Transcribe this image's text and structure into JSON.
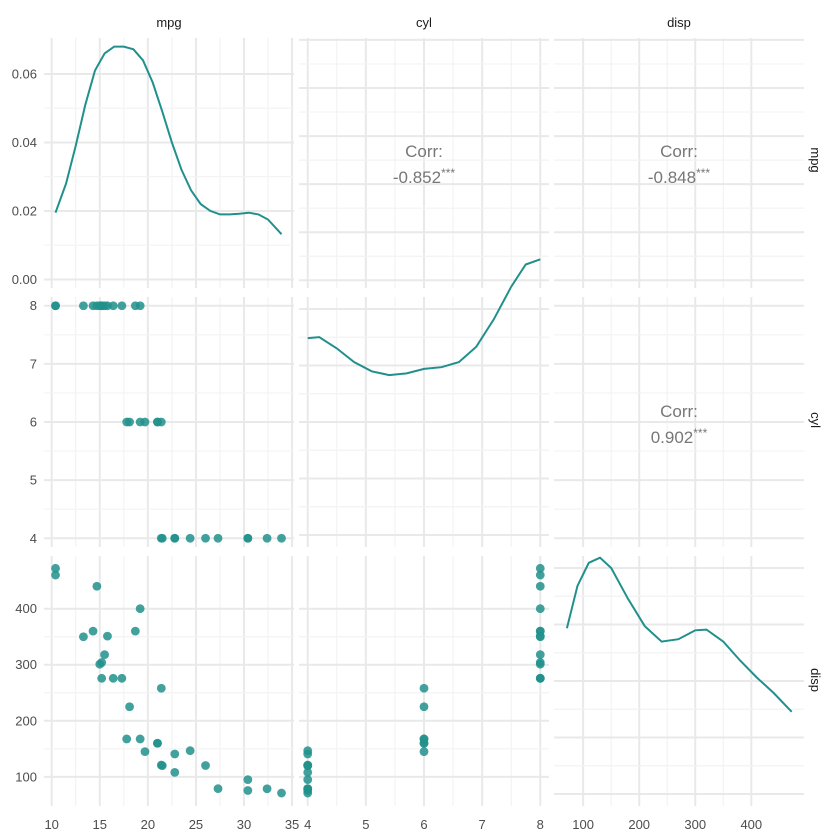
{
  "colors": {
    "series": "#21908c",
    "text": "#4d4d4d",
    "corr_text": "#777777",
    "grid": "#ebebeb"
  },
  "chart_data": {
    "type": "scatter",
    "variables": [
      "mpg",
      "cyl",
      "disp"
    ],
    "column_strips": [
      "mpg",
      "cyl",
      "disp"
    ],
    "row_strips": [
      "mpg",
      "cyl",
      "disp"
    ],
    "axes": {
      "mpg": {
        "range": [
          9.2,
          35.2
        ],
        "ticks": [
          "10",
          "15",
          "20",
          "25",
          "30",
          "35"
        ],
        "tick_values": [
          10,
          15,
          20,
          25,
          30,
          35
        ]
      },
      "cyl": {
        "range": [
          3.85,
          8.15
        ],
        "ticks": [
          "4",
          "5",
          "6",
          "7",
          "8"
        ],
        "tick_values": [
          4,
          5,
          6,
          7,
          8
        ]
      },
      "disp": {
        "range": [
          48,
          494
        ],
        "ticks": [
          "100",
          "200",
          "300",
          "400"
        ],
        "tick_values": [
          100,
          200,
          300,
          400
        ]
      },
      "density_y": {
        "range": [
          -0.0025,
          0.0705
        ],
        "ticks": [
          "0.00",
          "0.02",
          "0.04",
          "0.06"
        ],
        "tick_values": [
          0,
          0.02,
          0.04,
          0.06
        ]
      }
    },
    "correlations": [
      {
        "row": "mpg",
        "col": "cyl",
        "label": "Corr:",
        "value": "-0.852",
        "stars": "***"
      },
      {
        "row": "mpg",
        "col": "disp",
        "label": "Corr:",
        "value": "-0.848",
        "stars": "***"
      },
      {
        "row": "cyl",
        "col": "disp",
        "label": "Corr:",
        "value": "0.902",
        "stars": "***"
      }
    ],
    "density_mpg": [
      [
        10.4,
        0.0195
      ],
      [
        11.5,
        0.028
      ],
      [
        12.5,
        0.039
      ],
      [
        13.5,
        0.051
      ],
      [
        14.5,
        0.061
      ],
      [
        15.5,
        0.066
      ],
      [
        16.5,
        0.068
      ],
      [
        17.5,
        0.068
      ],
      [
        18.5,
        0.0672
      ],
      [
        19.5,
        0.064
      ],
      [
        20.5,
        0.0575
      ],
      [
        21.5,
        0.049
      ],
      [
        22.5,
        0.04
      ],
      [
        23.5,
        0.032
      ],
      [
        24.5,
        0.026
      ],
      [
        25.5,
        0.022
      ],
      [
        26.5,
        0.02
      ],
      [
        27.5,
        0.019
      ],
      [
        28.5,
        0.019
      ],
      [
        29.5,
        0.0192
      ],
      [
        30.5,
        0.0195
      ],
      [
        31.5,
        0.019
      ],
      [
        32.5,
        0.0175
      ],
      [
        33.9,
        0.0132
      ]
    ],
    "density_cyl": [
      [
        4.0,
        0.0585
      ],
      [
        4.2,
        0.0588
      ],
      [
        4.5,
        0.0555
      ],
      [
        4.8,
        0.0515
      ],
      [
        5.1,
        0.0488
      ],
      [
        5.4,
        0.0477
      ],
      [
        5.7,
        0.0482
      ],
      [
        6.0,
        0.0495
      ],
      [
        6.3,
        0.05
      ],
      [
        6.6,
        0.0515
      ],
      [
        6.9,
        0.056
      ],
      [
        7.2,
        0.064
      ],
      [
        7.5,
        0.0735
      ],
      [
        7.75,
        0.08
      ],
      [
        8.0,
        0.0815
      ]
    ],
    "density_disp": [
      [
        71,
        0.0494
      ],
      [
        90,
        0.0618
      ],
      [
        110,
        0.0685
      ],
      [
        130,
        0.07
      ],
      [
        150,
        0.067
      ],
      [
        180,
        0.058
      ],
      [
        210,
        0.05
      ],
      [
        240,
        0.0455
      ],
      [
        270,
        0.0462
      ],
      [
        300,
        0.0488
      ],
      [
        320,
        0.049
      ],
      [
        350,
        0.0455
      ],
      [
        380,
        0.04
      ],
      [
        410,
        0.035
      ],
      [
        440,
        0.0305
      ],
      [
        472,
        0.025
      ]
    ],
    "points": [
      {
        "mpg": 21.0,
        "cyl": 6,
        "disp": 160
      },
      {
        "mpg": 21.0,
        "cyl": 6,
        "disp": 160
      },
      {
        "mpg": 22.8,
        "cyl": 4,
        "disp": 108
      },
      {
        "mpg": 21.4,
        "cyl": 6,
        "disp": 258
      },
      {
        "mpg": 18.7,
        "cyl": 8,
        "disp": 360
      },
      {
        "mpg": 18.1,
        "cyl": 6,
        "disp": 225
      },
      {
        "mpg": 14.3,
        "cyl": 8,
        "disp": 360
      },
      {
        "mpg": 24.4,
        "cyl": 4,
        "disp": 146.7
      },
      {
        "mpg": 22.8,
        "cyl": 4,
        "disp": 140.8
      },
      {
        "mpg": 19.2,
        "cyl": 6,
        "disp": 167.6
      },
      {
        "mpg": 17.8,
        "cyl": 6,
        "disp": 167.6
      },
      {
        "mpg": 16.4,
        "cyl": 8,
        "disp": 275.8
      },
      {
        "mpg": 17.3,
        "cyl": 8,
        "disp": 275.8
      },
      {
        "mpg": 15.2,
        "cyl": 8,
        "disp": 275.8
      },
      {
        "mpg": 10.4,
        "cyl": 8,
        "disp": 472
      },
      {
        "mpg": 10.4,
        "cyl": 8,
        "disp": 460
      },
      {
        "mpg": 14.7,
        "cyl": 8,
        "disp": 440
      },
      {
        "mpg": 32.4,
        "cyl": 4,
        "disp": 78.7
      },
      {
        "mpg": 30.4,
        "cyl": 4,
        "disp": 75.7
      },
      {
        "mpg": 33.9,
        "cyl": 4,
        "disp": 71.1
      },
      {
        "mpg": 21.5,
        "cyl": 4,
        "disp": 120.1
      },
      {
        "mpg": 15.5,
        "cyl": 8,
        "disp": 318
      },
      {
        "mpg": 15.2,
        "cyl": 8,
        "disp": 304
      },
      {
        "mpg": 13.3,
        "cyl": 8,
        "disp": 350
      },
      {
        "mpg": 19.2,
        "cyl": 8,
        "disp": 400
      },
      {
        "mpg": 27.3,
        "cyl": 4,
        "disp": 79
      },
      {
        "mpg": 26.0,
        "cyl": 4,
        "disp": 120.3
      },
      {
        "mpg": 30.4,
        "cyl": 4,
        "disp": 95.1
      },
      {
        "mpg": 15.8,
        "cyl": 8,
        "disp": 351
      },
      {
        "mpg": 19.7,
        "cyl": 6,
        "disp": 145
      },
      {
        "mpg": 15.0,
        "cyl": 8,
        "disp": 301
      },
      {
        "mpg": 21.4,
        "cyl": 4,
        "disp": 121
      }
    ]
  }
}
